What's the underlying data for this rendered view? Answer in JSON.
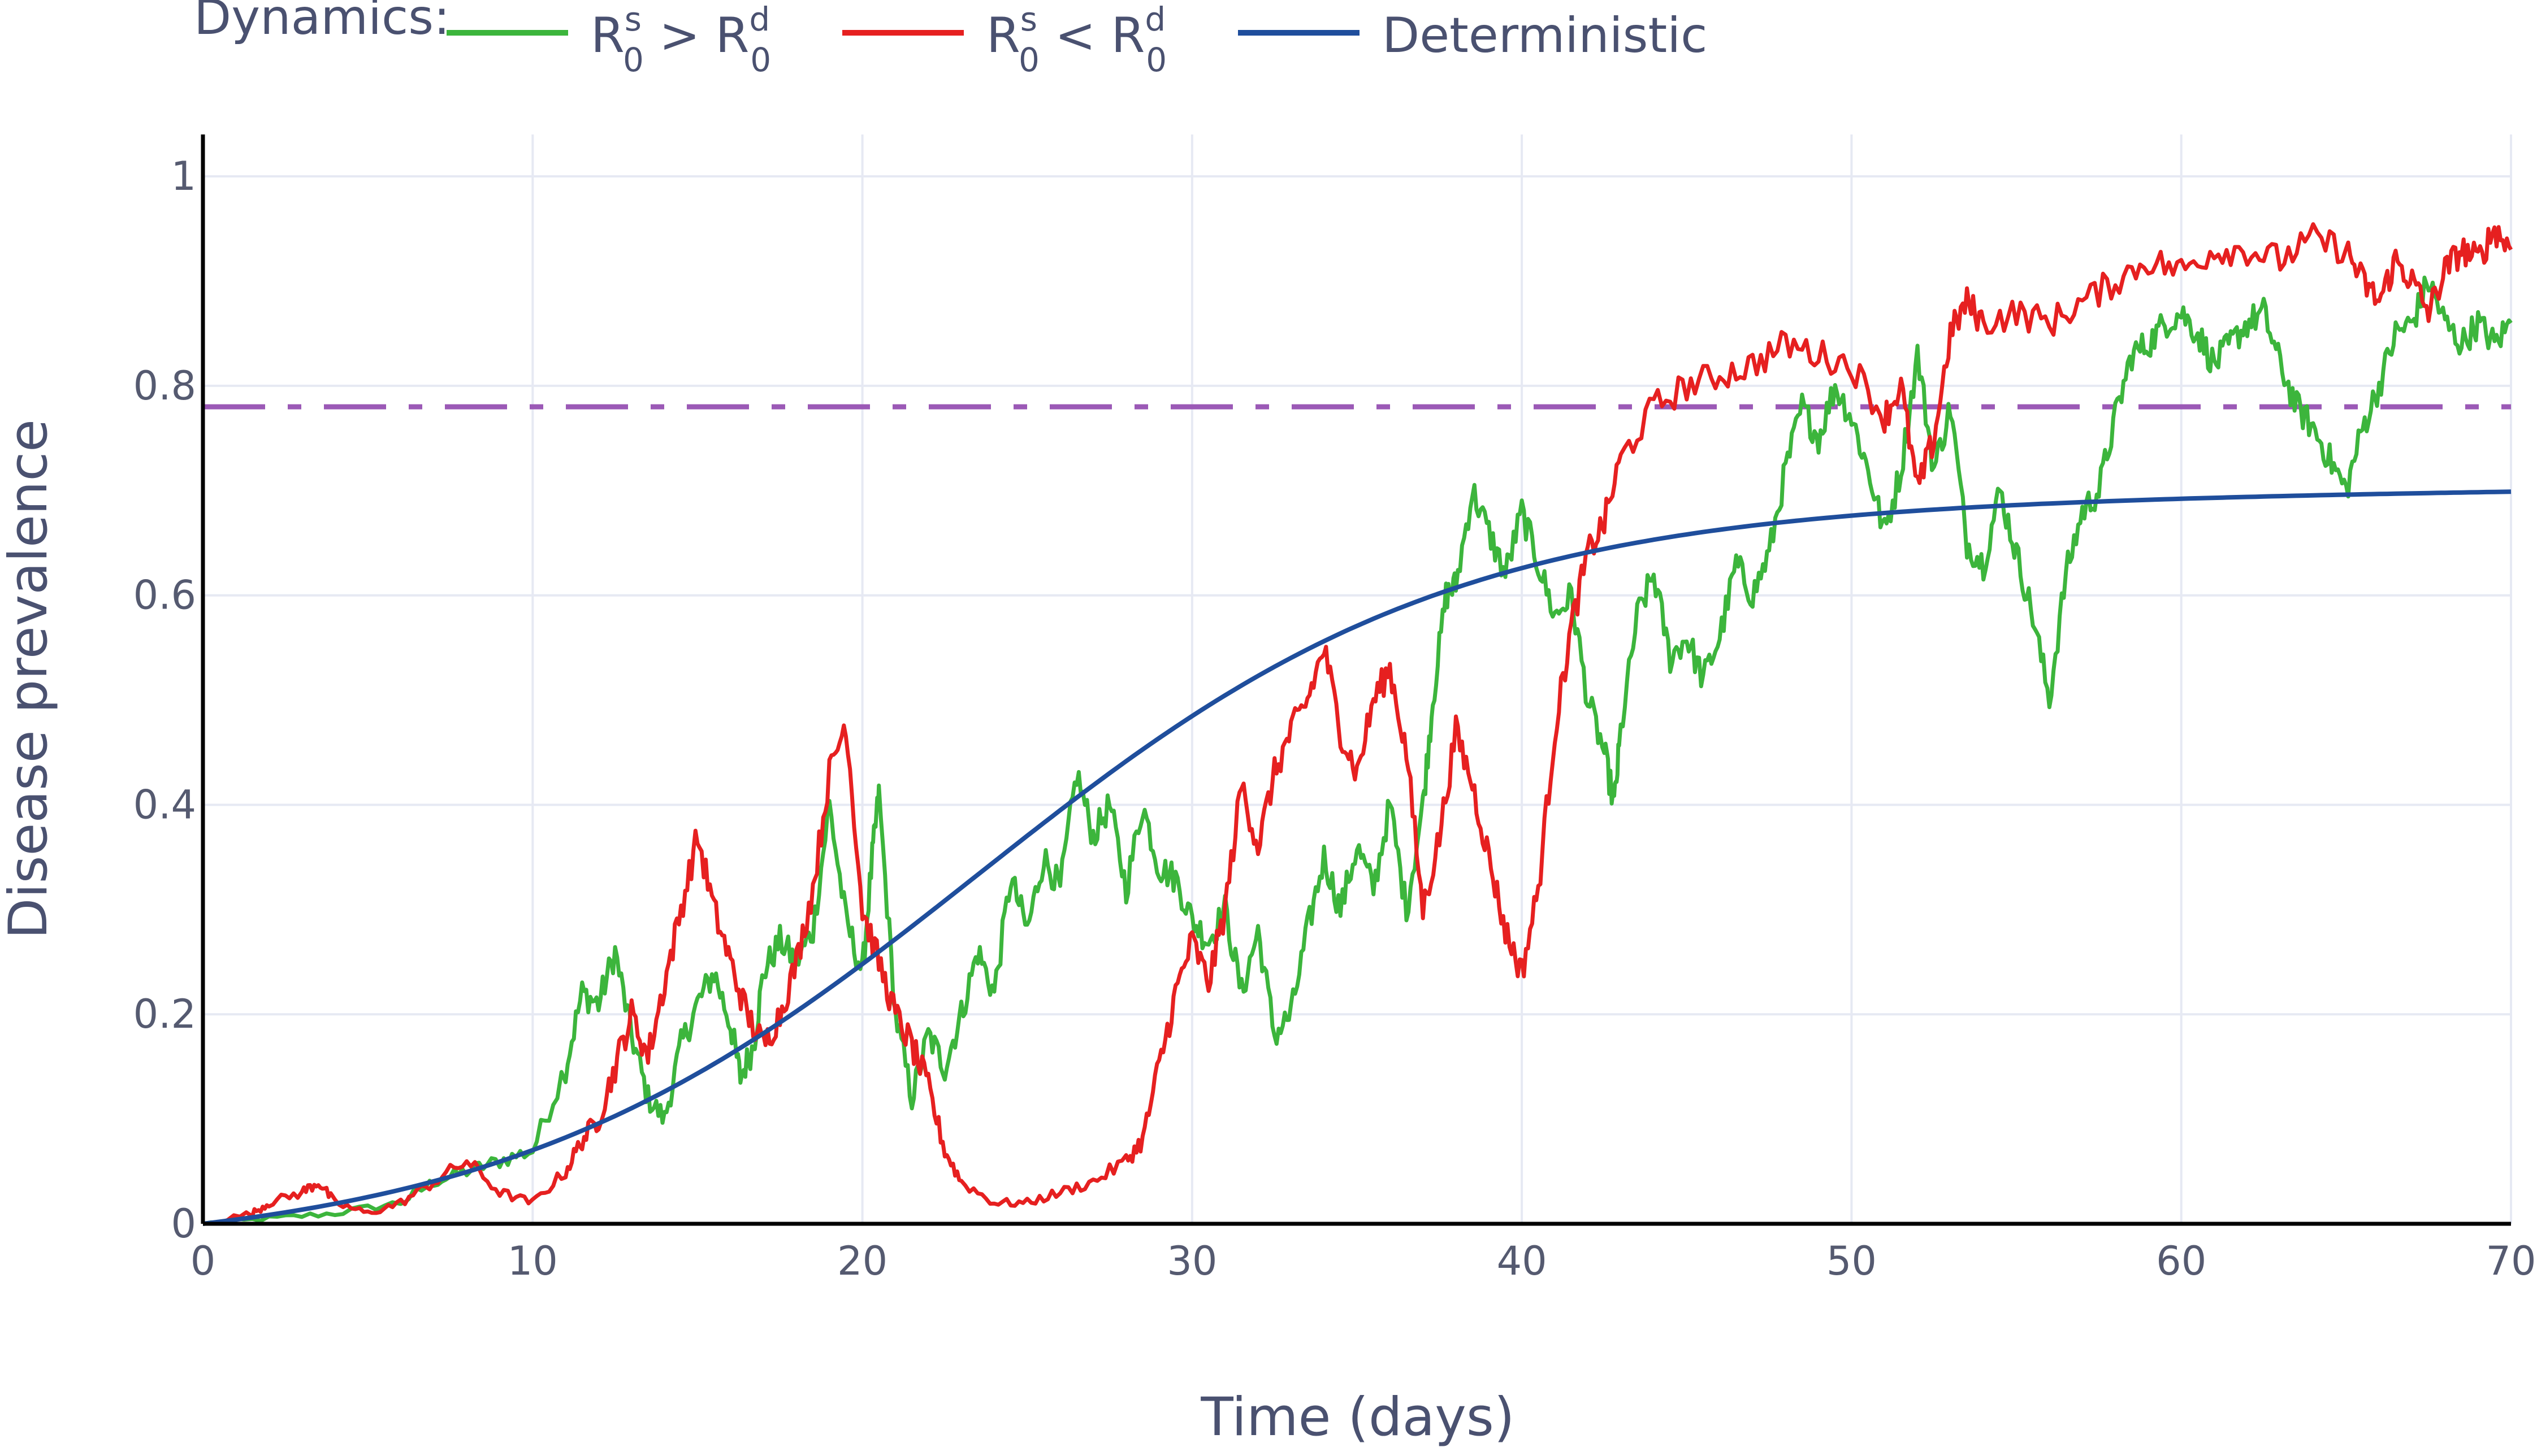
{
  "chart_data": {
    "type": "line",
    "title": "",
    "xlabel": "Time (days)",
    "ylabel": "Disease prevalence",
    "xlim": [
      0,
      70
    ],
    "ylim": [
      0,
      1.04
    ],
    "x_ticks": [
      "0",
      "10",
      "20",
      "30",
      "40",
      "50",
      "60",
      "70"
    ],
    "y_ticks": [
      "0",
      "0.2",
      "0.4",
      "0.6",
      "0.8",
      "1"
    ],
    "grid": true,
    "legend": {
      "title": "Dynamics:",
      "placement": "top-left, horizontal",
      "entries": [
        {
          "base": "R",
          "sup": "s",
          "sub": "0",
          "op": " > ",
          "base2": "R",
          "sup2": "d",
          "sub2": "0"
        },
        {
          "base": "R",
          "sup": "s",
          "sub": "0",
          "op": " < ",
          "base2": "R",
          "sup2": "d",
          "sub2": "0"
        },
        {
          "text": "Deterministic"
        }
      ]
    },
    "threshold": {
      "y": 0.78,
      "color": "#9b59b6",
      "style": "dash-dot"
    },
    "series": [
      {
        "name_ref": "legend.entries.0",
        "color": "#3cb53c",
        "points": [
          [
            0,
            0
          ],
          [
            2,
            0.005
          ],
          [
            4,
            0.01
          ],
          [
            6,
            0.02
          ],
          [
            7,
            0.04
          ],
          [
            8,
            0.05
          ],
          [
            9,
            0.06
          ],
          [
            10,
            0.07
          ],
          [
            11,
            0.15
          ],
          [
            11.5,
            0.22
          ],
          [
            12,
            0.21
          ],
          [
            12.5,
            0.26
          ],
          [
            13,
            0.18
          ],
          [
            13.5,
            0.12
          ],
          [
            14,
            0.1
          ],
          [
            14.5,
            0.17
          ],
          [
            15,
            0.21
          ],
          [
            15.5,
            0.24
          ],
          [
            16,
            0.19
          ],
          [
            16.3,
            0.14
          ],
          [
            16.7,
            0.17
          ],
          [
            17,
            0.24
          ],
          [
            17.5,
            0.27
          ],
          [
            18,
            0.25
          ],
          [
            18.5,
            0.28
          ],
          [
            19,
            0.4
          ],
          [
            19.5,
            0.29
          ],
          [
            20,
            0.24
          ],
          [
            20.3,
            0.35
          ],
          [
            20.5,
            0.41
          ],
          [
            21,
            0.2
          ],
          [
            21.5,
            0.12
          ],
          [
            22,
            0.18
          ],
          [
            22.5,
            0.15
          ],
          [
            23,
            0.2
          ],
          [
            23.5,
            0.26
          ],
          [
            24,
            0.22
          ],
          [
            24.5,
            0.33
          ],
          [
            25,
            0.28
          ],
          [
            25.5,
            0.35
          ],
          [
            26,
            0.32
          ],
          [
            26.5,
            0.43
          ],
          [
            27,
            0.37
          ],
          [
            27.5,
            0.4
          ],
          [
            28,
            0.32
          ],
          [
            28.5,
            0.4
          ],
          [
            29,
            0.34
          ],
          [
            29.5,
            0.33
          ],
          [
            30,
            0.29
          ],
          [
            30.5,
            0.27
          ],
          [
            31,
            0.3
          ],
          [
            31.5,
            0.22
          ],
          [
            32,
            0.28
          ],
          [
            32.5,
            0.18
          ],
          [
            33,
            0.2
          ],
          [
            33.5,
            0.28
          ],
          [
            34,
            0.35
          ],
          [
            34.5,
            0.3
          ],
          [
            35,
            0.36
          ],
          [
            35.5,
            0.32
          ],
          [
            36,
            0.4
          ],
          [
            36.5,
            0.3
          ],
          [
            37,
            0.4
          ],
          [
            37.3,
            0.5
          ],
          [
            37.7,
            0.6
          ],
          [
            38,
            0.61
          ],
          [
            38.5,
            0.7
          ],
          [
            39,
            0.66
          ],
          [
            39.5,
            0.62
          ],
          [
            40,
            0.68
          ],
          [
            40.5,
            0.63
          ],
          [
            41,
            0.58
          ],
          [
            41.5,
            0.6
          ],
          [
            42,
            0.5
          ],
          [
            42.5,
            0.45
          ],
          [
            42.8,
            0.4
          ],
          [
            43,
            0.47
          ],
          [
            43.5,
            0.58
          ],
          [
            44,
            0.62
          ],
          [
            44.5,
            0.54
          ],
          [
            45,
            0.56
          ],
          [
            45.5,
            0.52
          ],
          [
            46,
            0.56
          ],
          [
            46.5,
            0.63
          ],
          [
            47,
            0.6
          ],
          [
            47.5,
            0.64
          ],
          [
            48,
            0.72
          ],
          [
            48.5,
            0.78
          ],
          [
            49,
            0.75
          ],
          [
            49.5,
            0.8
          ],
          [
            50,
            0.77
          ],
          [
            50.5,
            0.72
          ],
          [
            51,
            0.66
          ],
          [
            51.5,
            0.72
          ],
          [
            52,
            0.83
          ],
          [
            52.5,
            0.72
          ],
          [
            53,
            0.78
          ],
          [
            53.5,
            0.65
          ],
          [
            54,
            0.63
          ],
          [
            54.5,
            0.7
          ],
          [
            55,
            0.64
          ],
          [
            55.5,
            0.58
          ],
          [
            56,
            0.5
          ],
          [
            56.5,
            0.62
          ],
          [
            57,
            0.68
          ],
          [
            57.5,
            0.7
          ],
          [
            58,
            0.77
          ],
          [
            58.5,
            0.83
          ],
          [
            59,
            0.84
          ],
          [
            59.5,
            0.86
          ],
          [
            60,
            0.87
          ],
          [
            60.5,
            0.85
          ],
          [
            61,
            0.82
          ],
          [
            61.5,
            0.84
          ],
          [
            62,
            0.86
          ],
          [
            62.5,
            0.87
          ],
          [
            63,
            0.82
          ],
          [
            63.5,
            0.78
          ],
          [
            64,
            0.76
          ],
          [
            64.5,
            0.73
          ],
          [
            65,
            0.7
          ],
          [
            65.5,
            0.76
          ],
          [
            66,
            0.8
          ],
          [
            66.5,
            0.85
          ],
          [
            67,
            0.86
          ],
          [
            67.5,
            0.9
          ],
          [
            68,
            0.86
          ],
          [
            68.5,
            0.84
          ],
          [
            69,
            0.86
          ],
          [
            69.5,
            0.84
          ],
          [
            70,
            0.86
          ]
        ]
      },
      {
        "name_ref": "legend.entries.1",
        "color": "#e62020",
        "points": [
          [
            0,
            0
          ],
          [
            1.5,
            0.01
          ],
          [
            2,
            0.02
          ],
          [
            3,
            0.03
          ],
          [
            3.5,
            0.04
          ],
          [
            4,
            0.02
          ],
          [
            5,
            0.01
          ],
          [
            6,
            0.02
          ],
          [
            7,
            0.04
          ],
          [
            8,
            0.06
          ],
          [
            9,
            0.03
          ],
          [
            10,
            0.02
          ],
          [
            11,
            0.05
          ],
          [
            11.5,
            0.08
          ],
          [
            12,
            0.1
          ],
          [
            12.5,
            0.15
          ],
          [
            13,
            0.2
          ],
          [
            13.5,
            0.16
          ],
          [
            14,
            0.23
          ],
          [
            14.5,
            0.3
          ],
          [
            15,
            0.37
          ],
          [
            15.5,
            0.3
          ],
          [
            16,
            0.25
          ],
          [
            16.5,
            0.2
          ],
          [
            17,
            0.17
          ],
          [
            17.5,
            0.2
          ],
          [
            18,
            0.25
          ],
          [
            18.5,
            0.32
          ],
          [
            19,
            0.43
          ],
          [
            19.5,
            0.48
          ],
          [
            20,
            0.3
          ],
          [
            20.5,
            0.25
          ],
          [
            21,
            0.2
          ],
          [
            21.5,
            0.17
          ],
          [
            22,
            0.13
          ],
          [
            22.5,
            0.07
          ],
          [
            23,
            0.04
          ],
          [
            24,
            0.02
          ],
          [
            25,
            0.02
          ],
          [
            26,
            0.03
          ],
          [
            27,
            0.04
          ],
          [
            28,
            0.06
          ],
          [
            28.5,
            0.08
          ],
          [
            29,
            0.15
          ],
          [
            29.5,
            0.22
          ],
          [
            30,
            0.27
          ],
          [
            30.5,
            0.23
          ],
          [
            31,
            0.3
          ],
          [
            31.5,
            0.42
          ],
          [
            32,
            0.36
          ],
          [
            32.5,
            0.43
          ],
          [
            33,
            0.47
          ],
          [
            33.5,
            0.5
          ],
          [
            34,
            0.55
          ],
          [
            34.5,
            0.47
          ],
          [
            35,
            0.43
          ],
          [
            35.5,
            0.5
          ],
          [
            36,
            0.53
          ],
          [
            36.5,
            0.45
          ],
          [
            37,
            0.3
          ],
          [
            37.5,
            0.37
          ],
          [
            38,
            0.47
          ],
          [
            38.5,
            0.42
          ],
          [
            39,
            0.35
          ],
          [
            39.5,
            0.28
          ],
          [
            40,
            0.24
          ],
          [
            40.5,
            0.32
          ],
          [
            41,
            0.47
          ],
          [
            41.5,
            0.57
          ],
          [
            42,
            0.64
          ],
          [
            42.5,
            0.67
          ],
          [
            43,
            0.73
          ],
          [
            44,
            0.78
          ],
          [
            45,
            0.8
          ],
          [
            46,
            0.81
          ],
          [
            47,
            0.82
          ],
          [
            48,
            0.84
          ],
          [
            49,
            0.83
          ],
          [
            50,
            0.82
          ],
          [
            51,
            0.77
          ],
          [
            51.5,
            0.8
          ],
          [
            52,
            0.7
          ],
          [
            52.5,
            0.75
          ],
          [
            53,
            0.85
          ],
          [
            53.5,
            0.88
          ],
          [
            54,
            0.86
          ],
          [
            55,
            0.87
          ],
          [
            56,
            0.86
          ],
          [
            57,
            0.88
          ],
          [
            58,
            0.9
          ],
          [
            59,
            0.92
          ],
          [
            60,
            0.91
          ],
          [
            61,
            0.93
          ],
          [
            62,
            0.93
          ],
          [
            63,
            0.92
          ],
          [
            64,
            0.94
          ],
          [
            65,
            0.93
          ],
          [
            65.5,
            0.9
          ],
          [
            66,
            0.88
          ],
          [
            66.5,
            0.92
          ],
          [
            67,
            0.9
          ],
          [
            67.5,
            0.87
          ],
          [
            68,
            0.91
          ],
          [
            68.5,
            0.93
          ],
          [
            69,
            0.92
          ],
          [
            69.5,
            0.95
          ],
          [
            70,
            0.93
          ]
        ]
      },
      {
        "name_ref": "legend.entries.2",
        "color": "#1f4e9c",
        "model": "logistic",
        "params": {
          "K": 0.7,
          "r": 0.14,
          "t0": 23.5,
          "y0_offset": 0.025,
          "start_y": 0
        }
      }
    ]
  }
}
